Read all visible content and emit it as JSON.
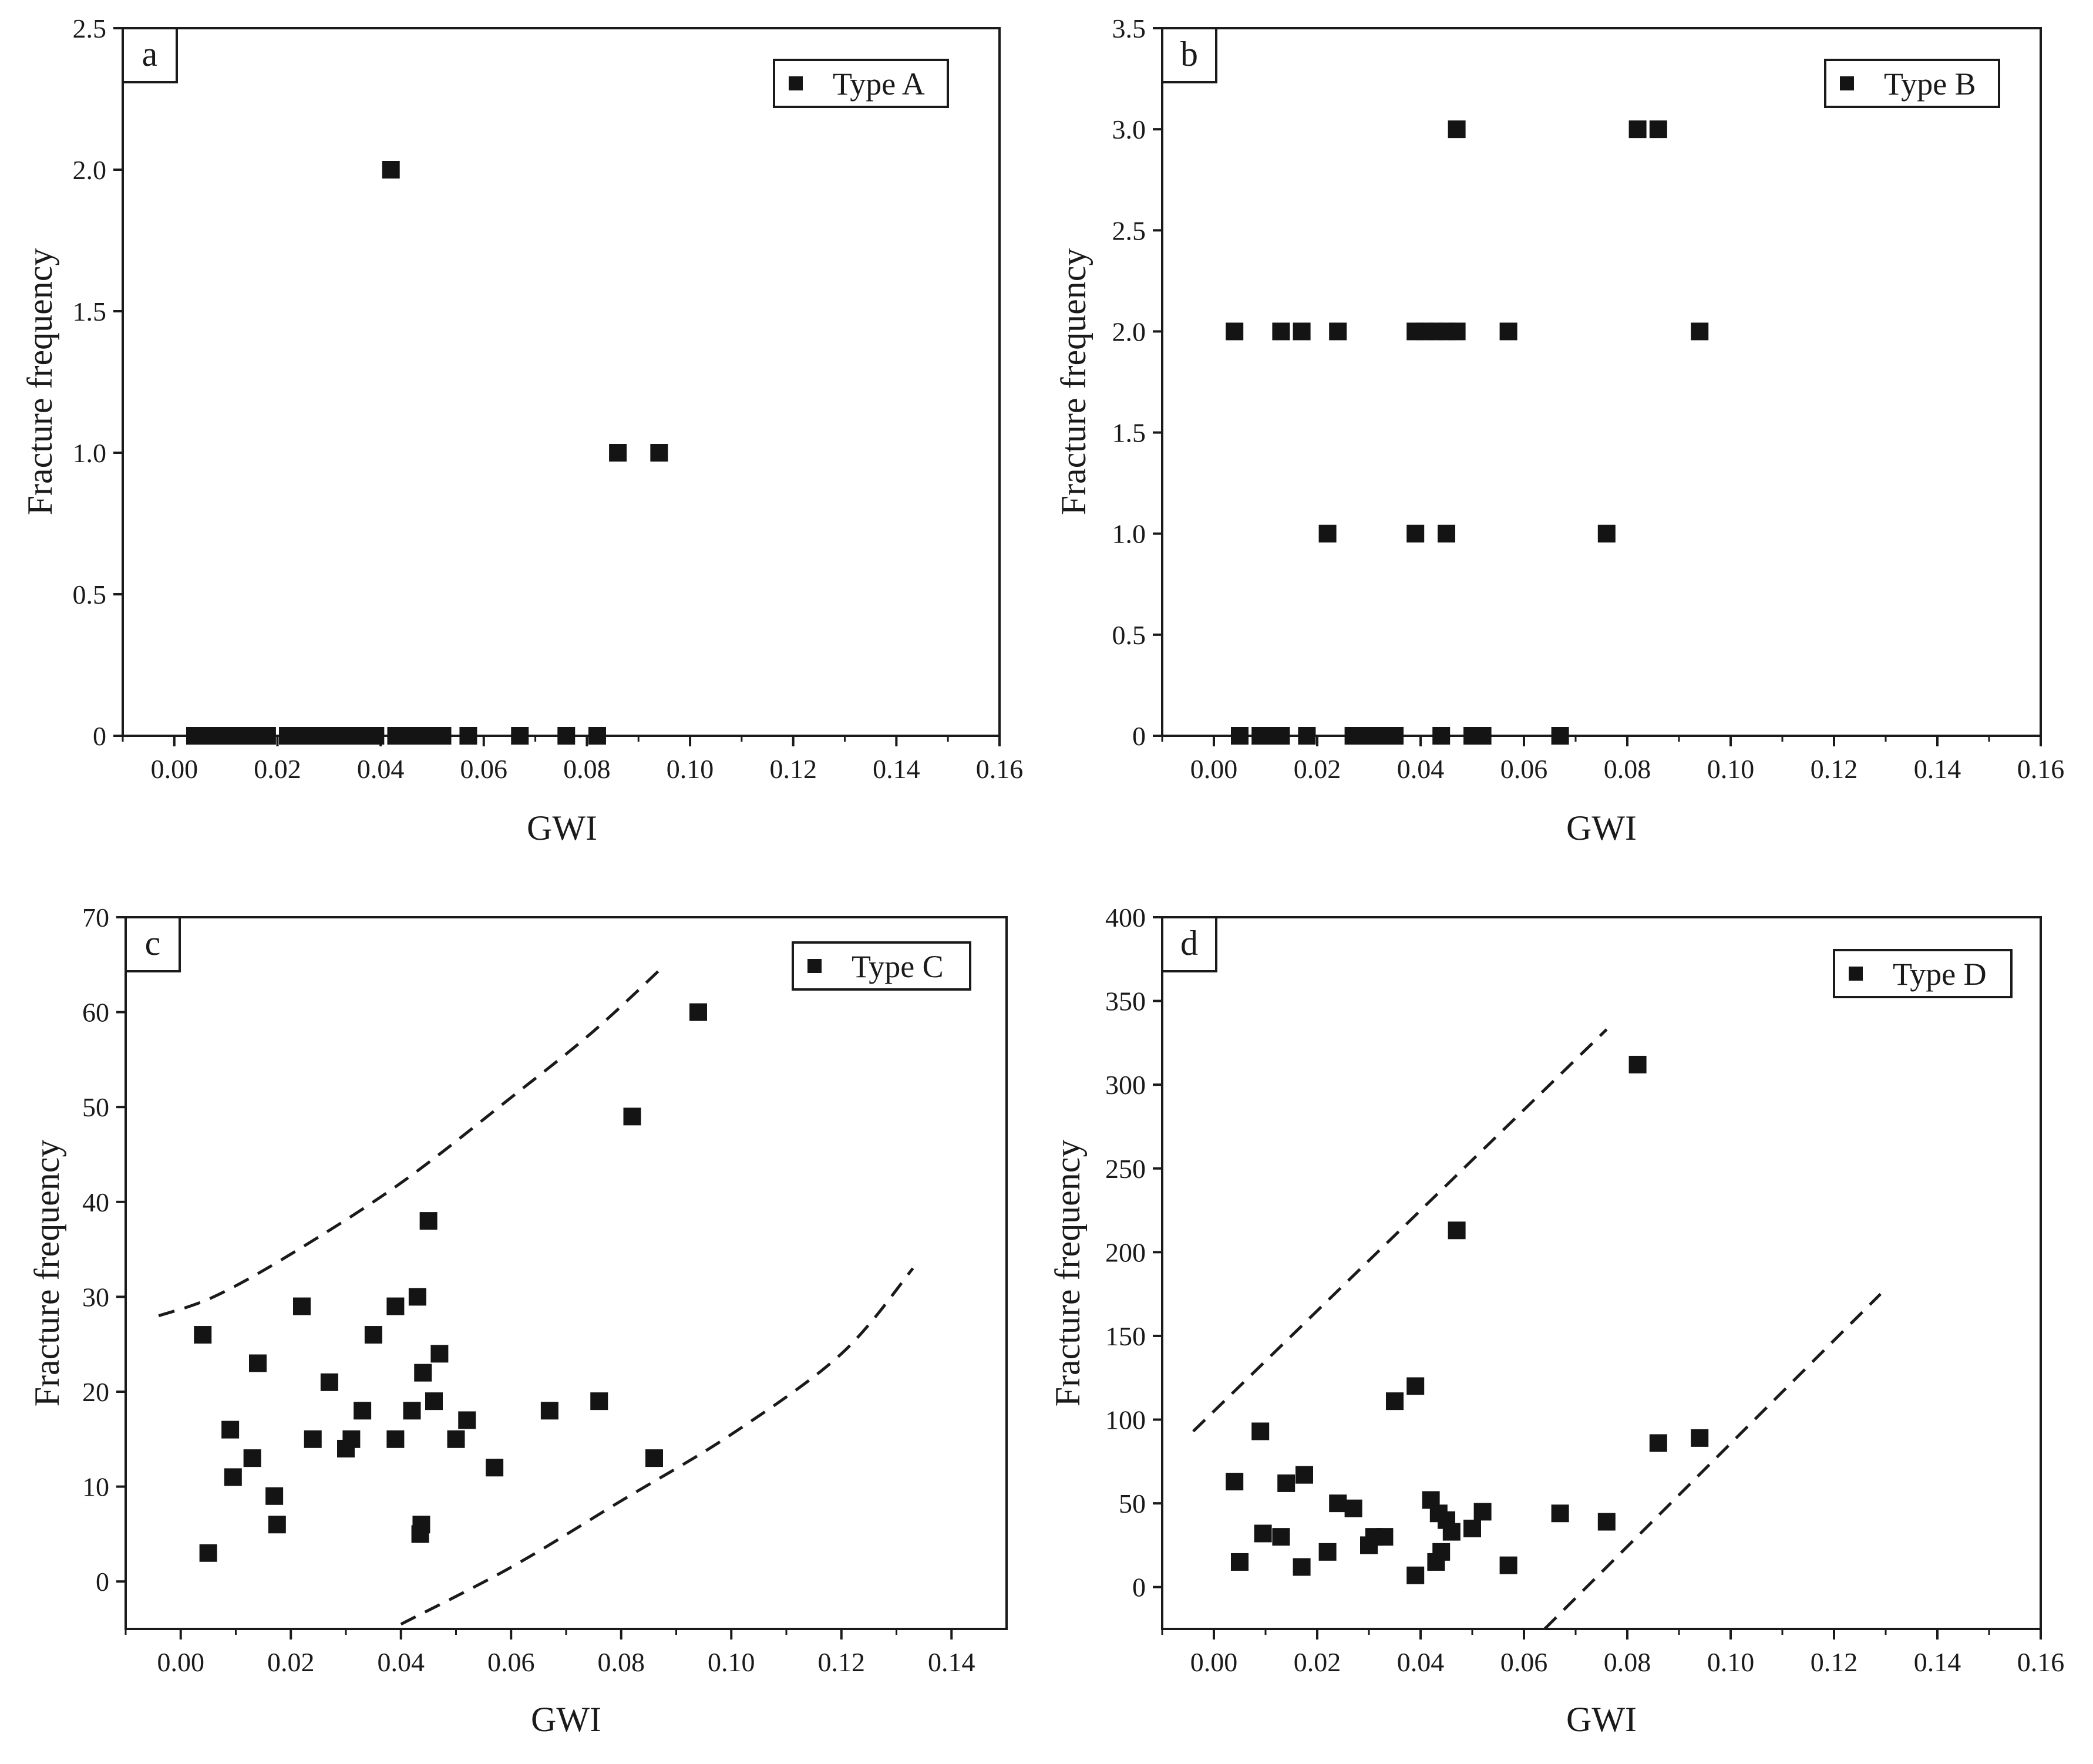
{
  "chart_data": [
    {
      "panel": "a",
      "type": "scatter",
      "xlabel": "GWI",
      "ylabel": "Fracture frequency",
      "xlim": [
        -0.01,
        0.16
      ],
      "ylim": [
        0,
        2.5
      ],
      "xticks": [
        "0.00",
        "0.02",
        "0.04",
        "0.06",
        "0.08",
        "0.10",
        "0.12",
        "0.14",
        "0.16"
      ],
      "xtick_values": [
        0,
        0.02,
        0.04,
        0.06,
        0.08,
        0.1,
        0.12,
        0.14,
        0.16
      ],
      "yticks": [
        "0",
        "0.5",
        "1.0",
        "1.5",
        "2.0",
        "2.5"
      ],
      "ytick_values": [
        0,
        0.5,
        1.0,
        1.5,
        2.0,
        2.5
      ],
      "legend": "Type A",
      "series": [
        {
          "name": "Type A",
          "points": [
            [
              0.004,
              0
            ],
            [
              0.006,
              0
            ],
            [
              0.009,
              0
            ],
            [
              0.011,
              0
            ],
            [
              0.013,
              0
            ],
            [
              0.014,
              0
            ],
            [
              0.017,
              0
            ],
            [
              0.018,
              0
            ],
            [
              0.022,
              0
            ],
            [
              0.024,
              0
            ],
            [
              0.026,
              0
            ],
            [
              0.027,
              0
            ],
            [
              0.029,
              0
            ],
            [
              0.03,
              0
            ],
            [
              0.032,
              0
            ],
            [
              0.033,
              0
            ],
            [
              0.035,
              0
            ],
            [
              0.038,
              0
            ],
            [
              0.039,
              0
            ],
            [
              0.043,
              0
            ],
            [
              0.044,
              0
            ],
            [
              0.045,
              0
            ],
            [
              0.047,
              0
            ],
            [
              0.05,
              0
            ],
            [
              0.052,
              0
            ],
            [
              0.057,
              0
            ],
            [
              0.067,
              0
            ],
            [
              0.076,
              0
            ],
            [
              0.082,
              0
            ],
            [
              0.042,
              2.0
            ],
            [
              0.086,
              1.0
            ],
            [
              0.094,
              1.0
            ]
          ]
        }
      ]
    },
    {
      "panel": "b",
      "type": "scatter",
      "xlabel": "GWI",
      "ylabel": "Fracture frequency",
      "xlim": [
        -0.01,
        0.16
      ],
      "ylim": [
        0,
        3.5
      ],
      "xticks": [
        "0.00",
        "0.02",
        "0.04",
        "0.06",
        "0.08",
        "0.10",
        "0.12",
        "0.14",
        "0.16"
      ],
      "xtick_values": [
        0,
        0.02,
        0.04,
        0.06,
        0.08,
        0.1,
        0.12,
        0.14,
        0.16
      ],
      "yticks": [
        "0",
        "0.5",
        "1.0",
        "1.5",
        "2.0",
        "2.5",
        "3.0",
        "3.5"
      ],
      "ytick_values": [
        0,
        0.5,
        1.0,
        1.5,
        2.0,
        2.5,
        3.0,
        3.5
      ],
      "legend": "Type B",
      "series": [
        {
          "name": "Type B",
          "points": [
            [
              0.005,
              0
            ],
            [
              0.009,
              0
            ],
            [
              0.011,
              0
            ],
            [
              0.013,
              0
            ],
            [
              0.018,
              0
            ],
            [
              0.027,
              0
            ],
            [
              0.029,
              0
            ],
            [
              0.031,
              0
            ],
            [
              0.033,
              0
            ],
            [
              0.035,
              0
            ],
            [
              0.044,
              0
            ],
            [
              0.05,
              0
            ],
            [
              0.052,
              0
            ],
            [
              0.067,
              0
            ],
            [
              0.004,
              2.0
            ],
            [
              0.013,
              2.0
            ],
            [
              0.017,
              2.0
            ],
            [
              0.024,
              2.0
            ],
            [
              0.039,
              2.0
            ],
            [
              0.041,
              2.0
            ],
            [
              0.043,
              2.0
            ],
            [
              0.045,
              2.0
            ],
            [
              0.047,
              2.0
            ],
            [
              0.057,
              2.0
            ],
            [
              0.094,
              2.0
            ],
            [
              0.022,
              1.0
            ],
            [
              0.039,
              1.0
            ],
            [
              0.045,
              1.0
            ],
            [
              0.076,
              1.0
            ],
            [
              0.047,
              3.0
            ],
            [
              0.082,
              3.0
            ],
            [
              0.086,
              3.0
            ]
          ]
        }
      ]
    },
    {
      "panel": "c",
      "type": "scatter",
      "xlabel": "GWI",
      "ylabel": "Fracture frequency",
      "xlim": [
        -0.01,
        0.15
      ],
      "ylim": [
        -5,
        70
      ],
      "xticks": [
        "0.00",
        "0.02",
        "0.04",
        "0.06",
        "0.08",
        "0.10",
        "0.12",
        "0.14"
      ],
      "xtick_values": [
        0,
        0.02,
        0.04,
        0.06,
        0.08,
        0.1,
        0.12,
        0.14
      ],
      "yticks": [
        "0",
        "10",
        "20",
        "30",
        "40",
        "50",
        "60",
        "70"
      ],
      "ytick_values": [
        0,
        10,
        20,
        30,
        40,
        50,
        60,
        70
      ],
      "legend": "Type C",
      "series": [
        {
          "name": "Type C",
          "points": [
            [
              0.004,
              26
            ],
            [
              0.005,
              3
            ],
            [
              0.009,
              16
            ],
            [
              0.0095,
              11
            ],
            [
              0.013,
              13
            ],
            [
              0.014,
              23
            ],
            [
              0.017,
              9
            ],
            [
              0.0175,
              6
            ],
            [
              0.022,
              29
            ],
            [
              0.024,
              15
            ],
            [
              0.027,
              21
            ],
            [
              0.03,
              14
            ],
            [
              0.031,
              15
            ],
            [
              0.033,
              18
            ],
            [
              0.035,
              26
            ],
            [
              0.039,
              29
            ],
            [
              0.039,
              15
            ],
            [
              0.042,
              18
            ],
            [
              0.043,
              30
            ],
            [
              0.0435,
              5
            ],
            [
              0.0437,
              6
            ],
            [
              0.044,
              22
            ],
            [
              0.045,
              38
            ],
            [
              0.046,
              19
            ],
            [
              0.047,
              24
            ],
            [
              0.05,
              15
            ],
            [
              0.052,
              17
            ],
            [
              0.057,
              12
            ],
            [
              0.067,
              18
            ],
            [
              0.076,
              19
            ],
            [
              0.082,
              49
            ],
            [
              0.086,
              13
            ],
            [
              0.094,
              60
            ]
          ]
        }
      ],
      "envelopes": [
        [
          [
            -0.004,
            28
          ],
          [
            0.006,
            30
          ],
          [
            0.02,
            34.5
          ],
          [
            0.04,
            42
          ],
          [
            0.06,
            51
          ],
          [
            0.075,
            58
          ],
          [
            0.088,
            65
          ]
        ],
        [
          [
            0.04,
            -4.5
          ],
          [
            0.06,
            1.5
          ],
          [
            0.08,
            8.5
          ],
          [
            0.1,
            15.5
          ],
          [
            0.12,
            24
          ],
          [
            0.133,
            33
          ]
        ]
      ]
    },
    {
      "panel": "d",
      "type": "scatter",
      "xlabel": "GWI",
      "ylabel": "Fracture frequency",
      "xlim": [
        -0.01,
        0.16
      ],
      "ylim": [
        -25,
        400
      ],
      "xticks": [
        "0.00",
        "0.02",
        "0.04",
        "0.06",
        "0.08",
        "0.10",
        "0.12",
        "0.14",
        "0.16"
      ],
      "xtick_values": [
        0,
        0.02,
        0.04,
        0.06,
        0.08,
        0.1,
        0.12,
        0.14,
        0.16
      ],
      "yticks": [
        "0",
        "50",
        "100",
        "150",
        "200",
        "250",
        "300",
        "350",
        "400"
      ],
      "ytick_values": [
        0,
        50,
        100,
        150,
        200,
        250,
        300,
        350,
        400
      ],
      "legend": "Type D",
      "series": [
        {
          "name": "Type D",
          "points": [
            [
              0.004,
              63
            ],
            [
              0.005,
              15
            ],
            [
              0.009,
              93
            ],
            [
              0.0095,
              32
            ],
            [
              0.013,
              30
            ],
            [
              0.014,
              62
            ],
            [
              0.017,
              12
            ],
            [
              0.0175,
              67
            ],
            [
              0.022,
              21
            ],
            [
              0.024,
              50
            ],
            [
              0.027,
              47
            ],
            [
              0.03,
              25
            ],
            [
              0.031,
              30
            ],
            [
              0.033,
              30
            ],
            [
              0.035,
              111
            ],
            [
              0.039,
              120
            ],
            [
              0.039,
              7
            ],
            [
              0.042,
              52
            ],
            [
              0.043,
              15
            ],
            [
              0.0435,
              44
            ],
            [
              0.044,
              21
            ],
            [
              0.045,
              40
            ],
            [
              0.046,
              33
            ],
            [
              0.047,
              213
            ],
            [
              0.05,
              35
            ],
            [
              0.052,
              45
            ],
            [
              0.057,
              13
            ],
            [
              0.067,
              44
            ],
            [
              0.076,
              39
            ],
            [
              0.082,
              312
            ],
            [
              0.086,
              86
            ],
            [
              0.094,
              89
            ]
          ]
        }
      ],
      "envelopes": [
        [
          [
            -0.004,
            93
          ],
          [
            0.076,
            333
          ]
        ],
        [
          [
            0.064,
            -25
          ],
          [
            0.129,
            175
          ]
        ]
      ]
    }
  ]
}
